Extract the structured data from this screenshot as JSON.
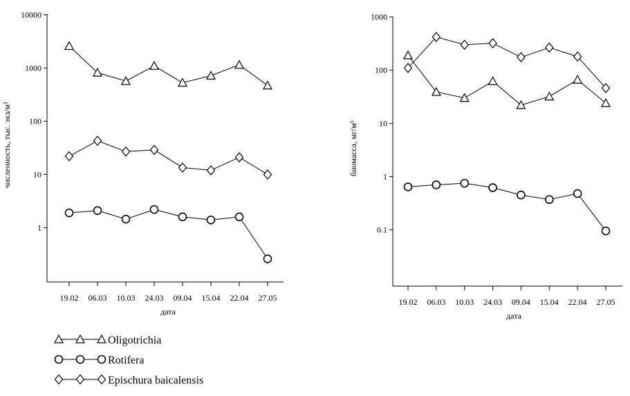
{
  "chart_data": [
    {
      "type": "line",
      "scale": "log",
      "categories": [
        "19.02",
        "06.03",
        "10.03",
        "24.03",
        "09.04",
        "15.04",
        "22.04",
        "27.05"
      ],
      "xlabel": "дата",
      "ylabel": "численность, тыс. экз/м³",
      "ylim": [
        0.1,
        10000
      ],
      "yticks": [
        "1",
        "10",
        "100",
        "1000",
        "10000"
      ],
      "grid": false,
      "series": [
        {
          "name": "Oligotrichia",
          "marker": "triangle",
          "values": [
            2600,
            820,
            570,
            1100,
            530,
            720,
            1150,
            470
          ]
        },
        {
          "name": "Rotifera",
          "marker": "circle",
          "values": [
            1.9,
            2.1,
            1.45,
            2.2,
            1.6,
            1.4,
            1.6,
            0.26
          ]
        },
        {
          "name": "Epischura baicalensis",
          "marker": "diamond",
          "values": [
            22,
            43,
            27,
            29,
            13.5,
            12,
            21,
            10
          ]
        }
      ]
    },
    {
      "type": "line",
      "scale": "log",
      "categories": [
        "19.02",
        "06.03",
        "10.03",
        "24.03",
        "09.04",
        "15.04",
        "22.04",
        "27.05"
      ],
      "xlabel": "дата",
      "ylabel": "биомасса, мг/м³",
      "ylim": [
        0.01,
        1000
      ],
      "yticks": [
        "0.1",
        "1",
        "10",
        "100",
        "1000"
      ],
      "grid": false,
      "series": [
        {
          "name": "Oligotrichia",
          "marker": "triangle",
          "values": [
            190,
            39,
            30,
            62,
            22,
            32,
            66,
            24
          ]
        },
        {
          "name": "Rotifera",
          "marker": "circle",
          "values": [
            0.64,
            0.7,
            0.75,
            0.62,
            0.45,
            0.37,
            0.48,
            0.095
          ]
        },
        {
          "name": "Epischura baicalensis",
          "marker": "diamond",
          "values": [
            110,
            420,
            300,
            320,
            175,
            265,
            180,
            46
          ]
        }
      ]
    }
  ],
  "legend": [
    {
      "label": "Oligotrichia",
      "marker": "triangle"
    },
    {
      "label": "Rotifera",
      "marker": "circle"
    },
    {
      "label": "Epischura baicalensis",
      "marker": "diamond"
    }
  ]
}
